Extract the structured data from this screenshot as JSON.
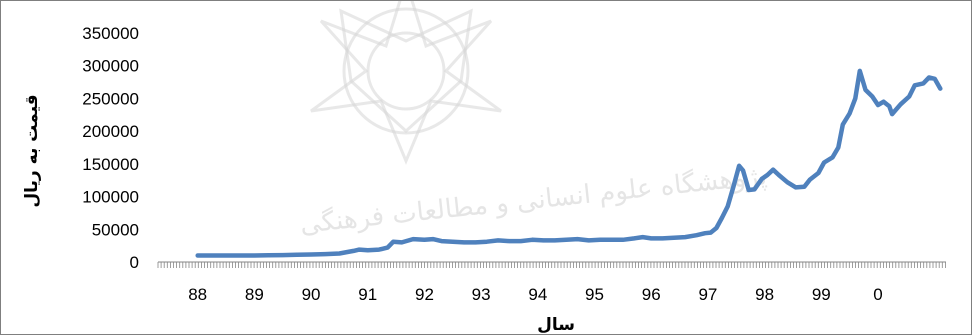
{
  "chart_data": {
    "type": "line",
    "xlabel": "سال",
    "ylabel": "قیمت به ریال",
    "ylim": [
      0,
      350000
    ],
    "yticks": [
      0,
      50000,
      100000,
      150000,
      200000,
      250000,
      300000,
      350000
    ],
    "ytick_labels": [
      "0",
      "50000",
      "100000",
      "150000",
      "200000",
      "250000",
      "300000",
      "350000"
    ],
    "xtick_labels": [
      "88",
      "89",
      "90",
      "91",
      "92",
      "93",
      "94",
      "95",
      "96",
      "97",
      "98",
      "99",
      "0"
    ],
    "grid": false,
    "legend": "none",
    "series": [
      {
        "color": "#4f81bd",
        "points": [
          [
            88.0,
            10000
          ],
          [
            88.25,
            10000
          ],
          [
            88.5,
            10000
          ],
          [
            88.75,
            10000
          ],
          [
            89.0,
            10000
          ],
          [
            89.25,
            10200
          ],
          [
            89.5,
            10500
          ],
          [
            89.75,
            11000
          ],
          [
            90.0,
            11500
          ],
          [
            90.25,
            12000
          ],
          [
            90.5,
            13000
          ],
          [
            90.75,
            17000
          ],
          [
            90.85,
            19000
          ],
          [
            91.0,
            18000
          ],
          [
            91.2,
            19000
          ],
          [
            91.35,
            22000
          ],
          [
            91.45,
            31000
          ],
          [
            91.6,
            30000
          ],
          [
            91.8,
            35000
          ],
          [
            92.0,
            34000
          ],
          [
            92.15,
            35000
          ],
          [
            92.3,
            32000
          ],
          [
            92.5,
            31000
          ],
          [
            92.7,
            30000
          ],
          [
            92.9,
            30000
          ],
          [
            93.1,
            31000
          ],
          [
            93.3,
            33000
          ],
          [
            93.5,
            32000
          ],
          [
            93.7,
            32000
          ],
          [
            93.9,
            34000
          ],
          [
            94.1,
            33000
          ],
          [
            94.3,
            33000
          ],
          [
            94.5,
            34000
          ],
          [
            94.7,
            35000
          ],
          [
            94.9,
            33000
          ],
          [
            95.1,
            34000
          ],
          [
            95.3,
            34000
          ],
          [
            95.5,
            34000
          ],
          [
            95.7,
            36000
          ],
          [
            95.85,
            38000
          ],
          [
            96.0,
            36000
          ],
          [
            96.2,
            36000
          ],
          [
            96.4,
            37000
          ],
          [
            96.6,
            38000
          ],
          [
            96.8,
            41000
          ],
          [
            96.95,
            44000
          ],
          [
            97.05,
            45000
          ],
          [
            97.15,
            52000
          ],
          [
            97.25,
            68000
          ],
          [
            97.35,
            85000
          ],
          [
            97.45,
            115000
          ],
          [
            97.55,
            147000
          ],
          [
            97.62,
            140000
          ],
          [
            97.72,
            110000
          ],
          [
            97.82,
            111000
          ],
          [
            97.95,
            127000
          ],
          [
            98.05,
            133000
          ],
          [
            98.15,
            141000
          ],
          [
            98.25,
            133000
          ],
          [
            98.4,
            122000
          ],
          [
            98.55,
            114000
          ],
          [
            98.7,
            115000
          ],
          [
            98.8,
            126000
          ],
          [
            98.95,
            136000
          ],
          [
            99.05,
            152000
          ],
          [
            99.2,
            160000
          ],
          [
            99.3,
            175000
          ],
          [
            99.38,
            210000
          ],
          [
            99.5,
            227000
          ],
          [
            99.6,
            250000
          ],
          [
            99.68,
            292000
          ],
          [
            99.78,
            263000
          ],
          [
            99.9,
            253000
          ],
          [
            100.0,
            240000
          ],
          [
            100.1,
            245000
          ],
          [
            100.2,
            238000
          ],
          [
            100.25,
            226000
          ],
          [
            100.4,
            241000
          ],
          [
            100.55,
            253000
          ],
          [
            100.65,
            270000
          ],
          [
            100.8,
            273000
          ],
          [
            100.9,
            282000
          ],
          [
            101.0,
            280000
          ],
          [
            101.1,
            265000
          ]
        ]
      }
    ]
  }
}
